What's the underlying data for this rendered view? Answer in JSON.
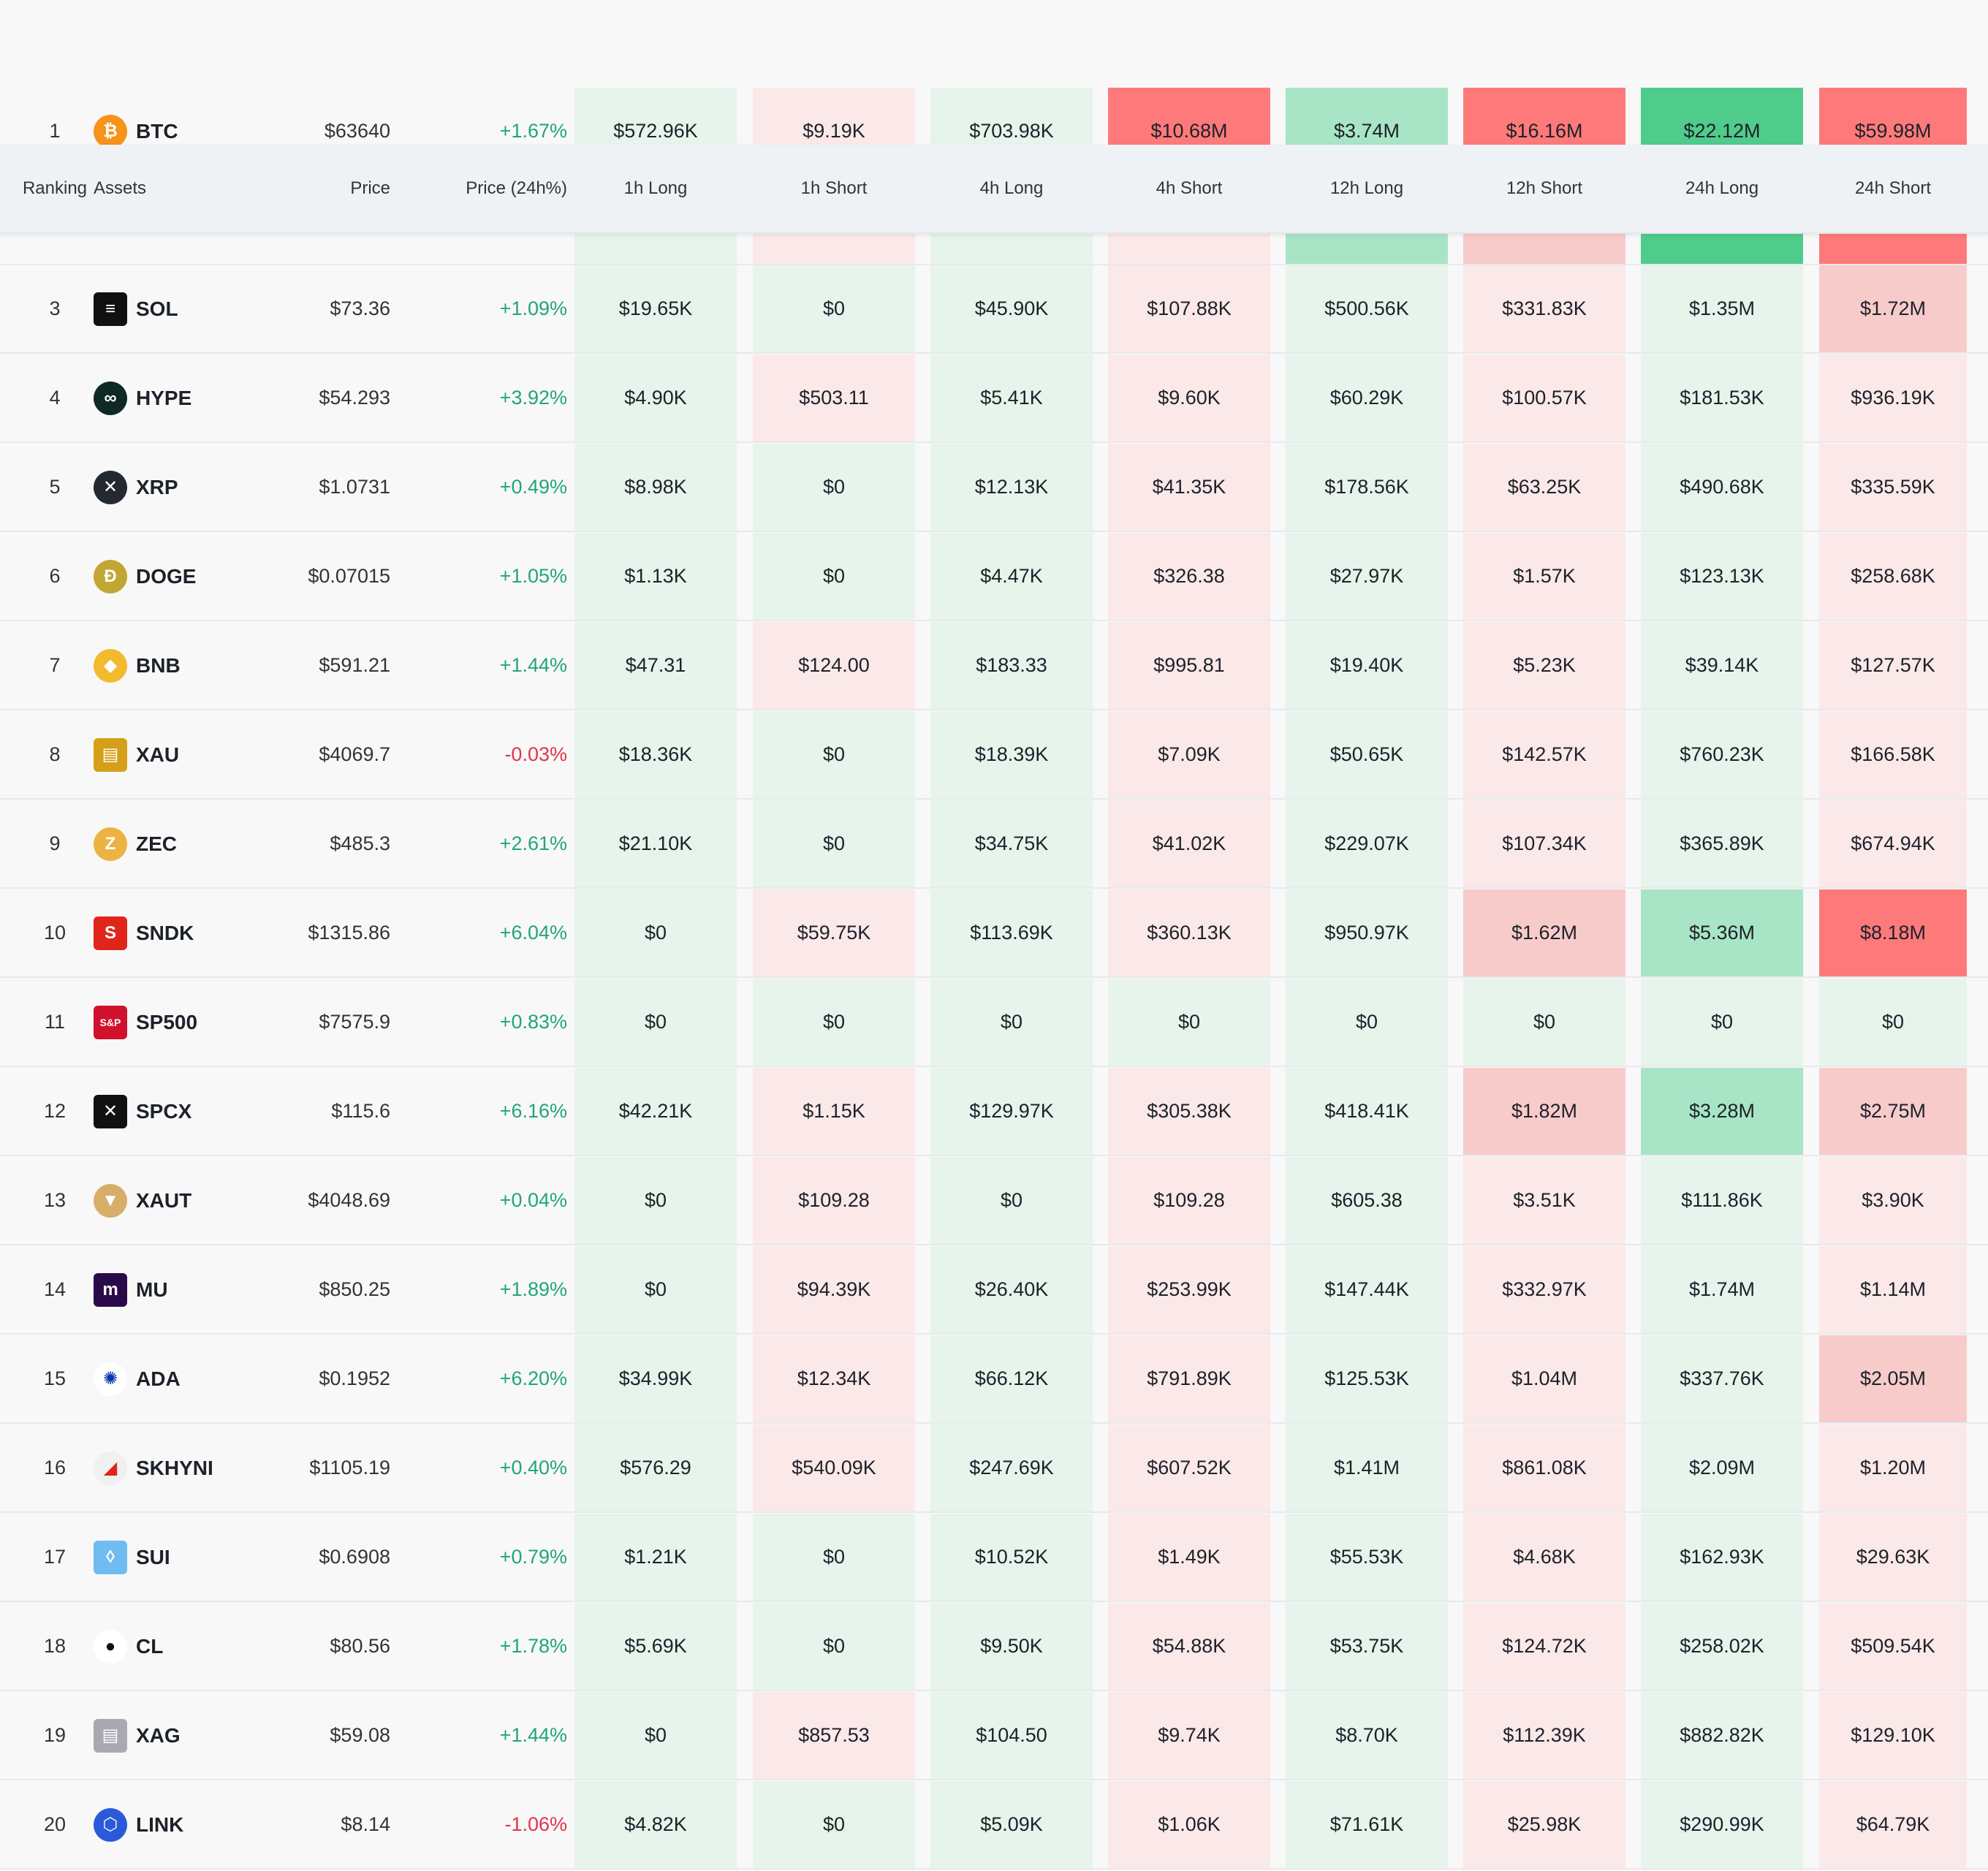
{
  "header": {
    "ranking": "Ranking",
    "assets": "Assets",
    "price": "Price",
    "change": "Price (24h%)",
    "cols": [
      "1h Long",
      "1h Short",
      "4h Long",
      "4h Short",
      "12h Long",
      "12h Short",
      "24h Long",
      "24h Short"
    ]
  },
  "colors": {
    "green_strong": "#4fcc8c",
    "green_mid": "#a8e5c6",
    "green_light": "#e6f4ec",
    "red_strong": "#fe7a7a",
    "red_mid": "#f8cbcb",
    "red_light": "#fbe8e8",
    "positive_text": "#21a675",
    "negative_text": "#e0354a"
  },
  "rows": [
    {
      "rank": "1",
      "asset": "BTC",
      "icon": "btc-icon",
      "price": "$63640",
      "change": "+1.67%",
      "dir": "up",
      "vals": [
        "$572.96K",
        "$9.19K",
        "$703.98K",
        "$10.68M",
        "$3.74M",
        "$16.16M",
        "$22.12M",
        "$59.98M"
      ],
      "levels": [
        "g1",
        "r1",
        "g1",
        "r3",
        "g2",
        "r3",
        "g3",
        "r3"
      ]
    },
    {
      "rank": "",
      "asset": "",
      "icon": "",
      "price": "",
      "change": "",
      "dir": "up",
      "vals": [
        "",
        "",
        "",
        "",
        "",
        "",
        "",
        ""
      ],
      "levels": [
        "g1",
        "r1",
        "g1",
        "r1",
        "g2",
        "r2",
        "g3",
        "r3"
      ]
    },
    {
      "rank": "3",
      "asset": "SOL",
      "icon": "sol-icon",
      "price": "$73.36",
      "change": "+1.09%",
      "dir": "up",
      "vals": [
        "$19.65K",
        "$0",
        "$45.90K",
        "$107.88K",
        "$500.56K",
        "$331.83K",
        "$1.35M",
        "$1.72M"
      ],
      "levels": [
        "g1",
        "g1",
        "g1",
        "r1",
        "g1",
        "r1",
        "g1",
        "r2"
      ]
    },
    {
      "rank": "4",
      "asset": "HYPE",
      "icon": "hype-icon",
      "price": "$54.293",
      "change": "+3.92%",
      "dir": "up",
      "vals": [
        "$4.90K",
        "$503.11",
        "$5.41K",
        "$9.60K",
        "$60.29K",
        "$100.57K",
        "$181.53K",
        "$936.19K"
      ],
      "levels": [
        "g1",
        "r1",
        "g1",
        "r1",
        "g1",
        "r1",
        "g1",
        "r1"
      ]
    },
    {
      "rank": "5",
      "asset": "XRP",
      "icon": "xrp-icon",
      "price": "$1.0731",
      "change": "+0.49%",
      "dir": "up",
      "vals": [
        "$8.98K",
        "$0",
        "$12.13K",
        "$41.35K",
        "$178.56K",
        "$63.25K",
        "$490.68K",
        "$335.59K"
      ],
      "levels": [
        "g1",
        "g1",
        "g1",
        "r1",
        "g1",
        "r1",
        "g1",
        "r1"
      ]
    },
    {
      "rank": "6",
      "asset": "DOGE",
      "icon": "doge-icon",
      "price": "$0.07015",
      "change": "+1.05%",
      "dir": "up",
      "vals": [
        "$1.13K",
        "$0",
        "$4.47K",
        "$326.38",
        "$27.97K",
        "$1.57K",
        "$123.13K",
        "$258.68K"
      ],
      "levels": [
        "g1",
        "g1",
        "g1",
        "r1",
        "g1",
        "r1",
        "g1",
        "r1"
      ]
    },
    {
      "rank": "7",
      "asset": "BNB",
      "icon": "bnb-icon",
      "price": "$591.21",
      "change": "+1.44%",
      "dir": "up",
      "vals": [
        "$47.31",
        "$124.00",
        "$183.33",
        "$995.81",
        "$19.40K",
        "$5.23K",
        "$39.14K",
        "$127.57K"
      ],
      "levels": [
        "g1",
        "r1",
        "g1",
        "r1",
        "g1",
        "r1",
        "g1",
        "r1"
      ]
    },
    {
      "rank": "8",
      "asset": "XAU",
      "icon": "xau-icon",
      "price": "$4069.7",
      "change": "-0.03%",
      "dir": "down",
      "vals": [
        "$18.36K",
        "$0",
        "$18.39K",
        "$7.09K",
        "$50.65K",
        "$142.57K",
        "$760.23K",
        "$166.58K"
      ],
      "levels": [
        "g1",
        "g1",
        "g1",
        "r1",
        "g1",
        "r1",
        "g1",
        "r1"
      ]
    },
    {
      "rank": "9",
      "asset": "ZEC",
      "icon": "zec-icon",
      "price": "$485.3",
      "change": "+2.61%",
      "dir": "up",
      "vals": [
        "$21.10K",
        "$0",
        "$34.75K",
        "$41.02K",
        "$229.07K",
        "$107.34K",
        "$365.89K",
        "$674.94K"
      ],
      "levels": [
        "g1",
        "g1",
        "g1",
        "r1",
        "g1",
        "r1",
        "g1",
        "r1"
      ]
    },
    {
      "rank": "10",
      "asset": "SNDK",
      "icon": "sndk-icon",
      "price": "$1315.86",
      "change": "+6.04%",
      "dir": "up",
      "vals": [
        "$0",
        "$59.75K",
        "$113.69K",
        "$360.13K",
        "$950.97K",
        "$1.62M",
        "$5.36M",
        "$8.18M"
      ],
      "levels": [
        "g1",
        "r1",
        "g1",
        "r1",
        "g1",
        "r2",
        "g2",
        "r3"
      ]
    },
    {
      "rank": "11",
      "asset": "SP500",
      "icon": "sp500-icon",
      "price": "$7575.9",
      "change": "+0.83%",
      "dir": "up",
      "vals": [
        "$0",
        "$0",
        "$0",
        "$0",
        "$0",
        "$0",
        "$0",
        "$0"
      ],
      "levels": [
        "g1",
        "g1",
        "g1",
        "g1",
        "g1",
        "g1",
        "g1",
        "g1"
      ]
    },
    {
      "rank": "12",
      "asset": "SPCX",
      "icon": "spcx-icon",
      "price": "$115.6",
      "change": "+6.16%",
      "dir": "up",
      "vals": [
        "$42.21K",
        "$1.15K",
        "$129.97K",
        "$305.38K",
        "$418.41K",
        "$1.82M",
        "$3.28M",
        "$2.75M"
      ],
      "levels": [
        "g1",
        "r1",
        "g1",
        "r1",
        "g1",
        "r2",
        "g2",
        "r2"
      ]
    },
    {
      "rank": "13",
      "asset": "XAUT",
      "icon": "xaut-icon",
      "price": "$4048.69",
      "change": "+0.04%",
      "dir": "up",
      "vals": [
        "$0",
        "$109.28",
        "$0",
        "$109.28",
        "$605.38",
        "$3.51K",
        "$111.86K",
        "$3.90K"
      ],
      "levels": [
        "g1",
        "r1",
        "g1",
        "r1",
        "g1",
        "r1",
        "g1",
        "r1"
      ]
    },
    {
      "rank": "14",
      "asset": "MU",
      "icon": "mu-icon",
      "price": "$850.25",
      "change": "+1.89%",
      "dir": "up",
      "vals": [
        "$0",
        "$94.39K",
        "$26.40K",
        "$253.99K",
        "$147.44K",
        "$332.97K",
        "$1.74M",
        "$1.14M"
      ],
      "levels": [
        "g1",
        "r1",
        "g1",
        "r1",
        "g1",
        "r1",
        "g1",
        "r1"
      ]
    },
    {
      "rank": "15",
      "asset": "ADA",
      "icon": "ada-icon",
      "price": "$0.1952",
      "change": "+6.20%",
      "dir": "up",
      "vals": [
        "$34.99K",
        "$12.34K",
        "$66.12K",
        "$791.89K",
        "$125.53K",
        "$1.04M",
        "$337.76K",
        "$2.05M"
      ],
      "levels": [
        "g1",
        "r1",
        "g1",
        "r1",
        "g1",
        "r1",
        "g1",
        "r2"
      ]
    },
    {
      "rank": "16",
      "asset": "SKHYNI",
      "icon": "skhynix-icon",
      "price": "$1105.19",
      "change": "+0.40%",
      "dir": "up",
      "vals": [
        "$576.29",
        "$540.09K",
        "$247.69K",
        "$607.52K",
        "$1.41M",
        "$861.08K",
        "$2.09M",
        "$1.20M"
      ],
      "levels": [
        "g1",
        "r1",
        "g1",
        "r1",
        "g1",
        "r1",
        "g1",
        "r1"
      ]
    },
    {
      "rank": "17",
      "asset": "SUI",
      "icon": "sui-icon",
      "price": "$0.6908",
      "change": "+0.79%",
      "dir": "up",
      "vals": [
        "$1.21K",
        "$0",
        "$10.52K",
        "$1.49K",
        "$55.53K",
        "$4.68K",
        "$162.93K",
        "$29.63K"
      ],
      "levels": [
        "g1",
        "g1",
        "g1",
        "r1",
        "g1",
        "r1",
        "g1",
        "r1"
      ]
    },
    {
      "rank": "18",
      "asset": "CL",
      "icon": "oil-drop-icon",
      "price": "$80.56",
      "change": "+1.78%",
      "dir": "up",
      "vals": [
        "$5.69K",
        "$0",
        "$9.50K",
        "$54.88K",
        "$53.75K",
        "$124.72K",
        "$258.02K",
        "$509.54K"
      ],
      "levels": [
        "g1",
        "g1",
        "g1",
        "r1",
        "g1",
        "r1",
        "g1",
        "r1"
      ]
    },
    {
      "rank": "19",
      "asset": "XAG",
      "icon": "xag-icon",
      "price": "$59.08",
      "change": "+1.44%",
      "dir": "up",
      "vals": [
        "$0",
        "$857.53",
        "$104.50",
        "$9.74K",
        "$8.70K",
        "$112.39K",
        "$882.82K",
        "$129.10K"
      ],
      "levels": [
        "g1",
        "r1",
        "g1",
        "r1",
        "g1",
        "r1",
        "g1",
        "r1"
      ]
    },
    {
      "rank": "20",
      "asset": "LINK",
      "icon": "link-icon",
      "price": "$8.14",
      "change": "-1.06%",
      "dir": "down",
      "vals": [
        "$4.82K",
        "$0",
        "$5.09K",
        "$1.06K",
        "$71.61K",
        "$25.98K",
        "$290.99K",
        "$64.79K"
      ],
      "levels": [
        "g1",
        "g1",
        "g1",
        "r1",
        "g1",
        "r1",
        "g1",
        "r1"
      ]
    }
  ]
}
